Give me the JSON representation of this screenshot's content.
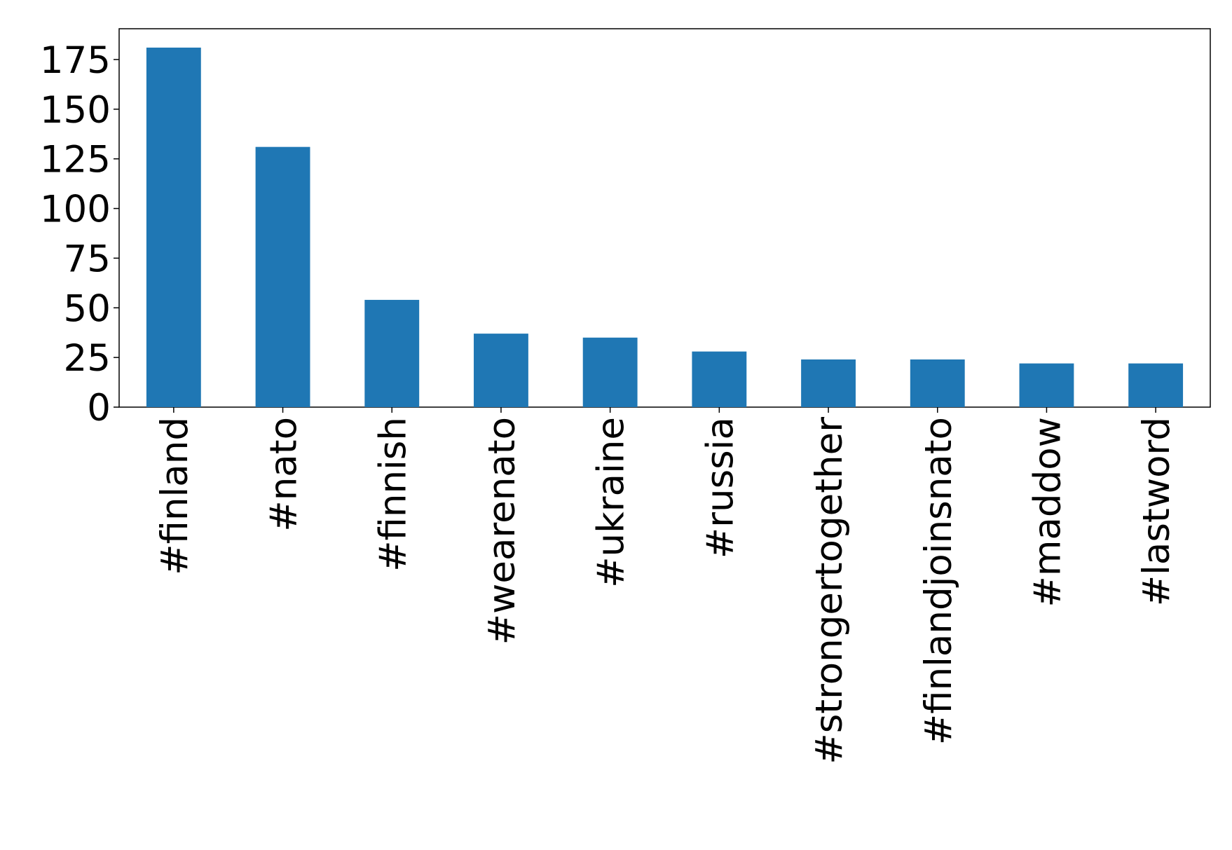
{
  "chart_data": {
    "type": "bar",
    "categories": [
      "#finland",
      "#nato",
      "#finnish",
      "#wearenato",
      "#ukraine",
      "#russia",
      "#strongertogether",
      "#finlandjoinsnato",
      "#maddow",
      "#lastword"
    ],
    "values": [
      181,
      131,
      54,
      37,
      35,
      28,
      24,
      24,
      22,
      22
    ],
    "color": "#1f77b4",
    "ylim": [
      0,
      190.5
    ],
    "yticks": [
      0,
      25,
      50,
      75,
      100,
      125,
      150,
      175
    ]
  }
}
